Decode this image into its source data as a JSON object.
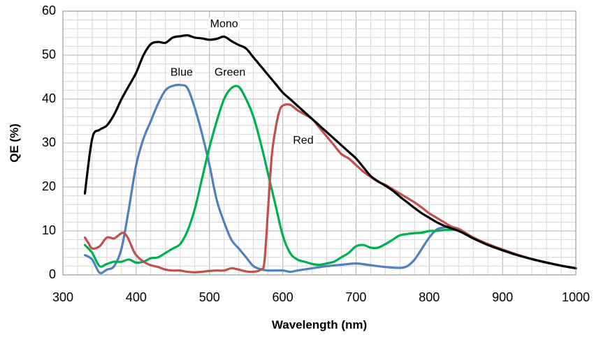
{
  "chart_data": {
    "type": "line",
    "xlabel": "Wavelength (nm)",
    "ylabel": "QE (%)",
    "xlim": [
      300,
      1000
    ],
    "ylim": [
      0,
      60
    ],
    "xticks": [
      300,
      400,
      500,
      600,
      700,
      800,
      900,
      1000
    ],
    "yticks": [
      0,
      10,
      20,
      30,
      40,
      50,
      60
    ],
    "grid": true,
    "legend": "none",
    "series": [
      {
        "name": "Mono",
        "color": "#000000",
        "label_at": [
          520,
          57
        ],
        "points": [
          [
            330,
            18.5
          ],
          [
            340,
            31
          ],
          [
            350,
            33
          ],
          [
            360,
            34
          ],
          [
            370,
            36.5
          ],
          [
            380,
            40
          ],
          [
            390,
            43
          ],
          [
            400,
            46
          ],
          [
            410,
            50
          ],
          [
            420,
            52.5
          ],
          [
            430,
            53
          ],
          [
            440,
            52.8
          ],
          [
            450,
            54
          ],
          [
            460,
            54.3
          ],
          [
            470,
            54.5
          ],
          [
            480,
            54
          ],
          [
            490,
            53.8
          ],
          [
            500,
            53.5
          ],
          [
            510,
            53.7
          ],
          [
            520,
            54.2
          ],
          [
            530,
            53.2
          ],
          [
            540,
            52.3
          ],
          [
            550,
            51.5
          ],
          [
            560,
            49.5
          ],
          [
            570,
            47.5
          ],
          [
            580,
            45.5
          ],
          [
            590,
            43.5
          ],
          [
            600,
            41.5
          ],
          [
            610,
            40
          ],
          [
            620,
            38.5
          ],
          [
            630,
            37
          ],
          [
            640,
            35.5
          ],
          [
            650,
            34
          ],
          [
            660,
            32.5
          ],
          [
            670,
            31
          ],
          [
            680,
            29.5
          ],
          [
            690,
            28
          ],
          [
            700,
            26.5
          ],
          [
            710,
            24.5
          ],
          [
            720,
            22.5
          ],
          [
            730,
            21.3
          ],
          [
            740,
            20.3
          ],
          [
            750,
            19.2
          ],
          [
            760,
            17.8
          ],
          [
            770,
            16.5
          ],
          [
            780,
            15.2
          ],
          [
            790,
            14
          ],
          [
            800,
            13
          ],
          [
            810,
            12
          ],
          [
            820,
            11.2
          ],
          [
            830,
            10.6
          ],
          [
            840,
            10
          ],
          [
            850,
            9.2
          ],
          [
            860,
            8.3
          ],
          [
            880,
            6.8
          ],
          [
            900,
            5.6
          ],
          [
            920,
            4.5
          ],
          [
            940,
            3.6
          ],
          [
            960,
            2.8
          ],
          [
            980,
            2.1
          ],
          [
            1000,
            1.5
          ]
        ]
      },
      {
        "name": "Blue",
        "color": "#4f81bd",
        "label_at": [
          462,
          46
        ],
        "points": [
          [
            330,
            4.5
          ],
          [
            340,
            3.5
          ],
          [
            350,
            0.5
          ],
          [
            360,
            1.2
          ],
          [
            370,
            2
          ],
          [
            380,
            6
          ],
          [
            390,
            15
          ],
          [
            400,
            25
          ],
          [
            410,
            31
          ],
          [
            420,
            35
          ],
          [
            430,
            39
          ],
          [
            440,
            42
          ],
          [
            450,
            43
          ],
          [
            460,
            43.2
          ],
          [
            470,
            42.5
          ],
          [
            480,
            38
          ],
          [
            490,
            32
          ],
          [
            500,
            25
          ],
          [
            510,
            17
          ],
          [
            520,
            12
          ],
          [
            530,
            8
          ],
          [
            540,
            6
          ],
          [
            550,
            4
          ],
          [
            560,
            2
          ],
          [
            570,
            1.3
          ],
          [
            580,
            1
          ],
          [
            600,
            1
          ],
          [
            610,
            0.7
          ],
          [
            620,
            1
          ],
          [
            640,
            1.5
          ],
          [
            660,
            2
          ],
          [
            680,
            2.3
          ],
          [
            700,
            2.6
          ],
          [
            720,
            2.2
          ],
          [
            740,
            1.8
          ],
          [
            760,
            1.6
          ],
          [
            770,
            2
          ],
          [
            780,
            3.5
          ],
          [
            790,
            6
          ],
          [
            800,
            8.5
          ],
          [
            810,
            10.3
          ],
          [
            820,
            10.8
          ],
          [
            830,
            10.8
          ],
          [
            840,
            10.2
          ],
          [
            860,
            8.5
          ],
          [
            880,
            7
          ],
          [
            900,
            5.7
          ],
          [
            920,
            4.6
          ],
          [
            940,
            3.6
          ],
          [
            960,
            2.8
          ],
          [
            980,
            2.1
          ],
          [
            1000,
            1.5
          ]
        ]
      },
      {
        "name": "Green",
        "color": "#00b050",
        "label_at": [
          528,
          46
        ],
        "points": [
          [
            330,
            6.8
          ],
          [
            340,
            5
          ],
          [
            350,
            2
          ],
          [
            360,
            2.5
          ],
          [
            370,
            3
          ],
          [
            380,
            3
          ],
          [
            390,
            3.5
          ],
          [
            400,
            2.8
          ],
          [
            410,
            3
          ],
          [
            420,
            3.8
          ],
          [
            430,
            4
          ],
          [
            440,
            5
          ],
          [
            450,
            6
          ],
          [
            460,
            7
          ],
          [
            470,
            10
          ],
          [
            480,
            15
          ],
          [
            490,
            22
          ],
          [
            500,
            29
          ],
          [
            510,
            35
          ],
          [
            520,
            40
          ],
          [
            530,
            42.5
          ],
          [
            540,
            42.8
          ],
          [
            550,
            40
          ],
          [
            560,
            36
          ],
          [
            570,
            30
          ],
          [
            580,
            23
          ],
          [
            590,
            16
          ],
          [
            600,
            9
          ],
          [
            610,
            5
          ],
          [
            620,
            3.5
          ],
          [
            630,
            3
          ],
          [
            640,
            2.5
          ],
          [
            650,
            2.3
          ],
          [
            660,
            2.6
          ],
          [
            670,
            3
          ],
          [
            680,
            4
          ],
          [
            690,
            5
          ],
          [
            700,
            6.5
          ],
          [
            710,
            6.8
          ],
          [
            720,
            6.2
          ],
          [
            730,
            6.2
          ],
          [
            740,
            7
          ],
          [
            750,
            8
          ],
          [
            760,
            9
          ],
          [
            770,
            9.3
          ],
          [
            780,
            9.5
          ],
          [
            790,
            9.6
          ],
          [
            800,
            10
          ],
          [
            810,
            10
          ],
          [
            820,
            10.2
          ],
          [
            830,
            10.3
          ],
          [
            840,
            10.2
          ],
          [
            850,
            9.3
          ],
          [
            860,
            8.5
          ],
          [
            880,
            7
          ],
          [
            900,
            5.7
          ],
          [
            920,
            4.6
          ],
          [
            940,
            3.6
          ],
          [
            960,
            2.8
          ],
          [
            980,
            2.1
          ],
          [
            1000,
            1.5
          ]
        ]
      },
      {
        "name": "Red",
        "color": "#c0504d",
        "label_at": [
          628,
          30.5
        ],
        "points": [
          [
            330,
            8.5
          ],
          [
            335,
            7.2
          ],
          [
            340,
            6
          ],
          [
            350,
            6.5
          ],
          [
            360,
            8.5
          ],
          [
            370,
            8.3
          ],
          [
            380,
            9.5
          ],
          [
            385,
            9.3
          ],
          [
            390,
            8
          ],
          [
            395,
            6
          ],
          [
            400,
            4.5
          ],
          [
            410,
            3
          ],
          [
            420,
            2.2
          ],
          [
            430,
            1.8
          ],
          [
            440,
            1.2
          ],
          [
            450,
            1
          ],
          [
            460,
            1
          ],
          [
            470,
            0.7
          ],
          [
            480,
            0.6
          ],
          [
            490,
            0.7
          ],
          [
            500,
            0.9
          ],
          [
            510,
            1
          ],
          [
            520,
            1
          ],
          [
            530,
            1.5
          ],
          [
            540,
            1.2
          ],
          [
            550,
            0.8
          ],
          [
            560,
            0.7
          ],
          [
            570,
            1.2
          ],
          [
            575,
            3
          ],
          [
            580,
            15
          ],
          [
            585,
            27
          ],
          [
            590,
            33
          ],
          [
            595,
            37
          ],
          [
            600,
            38.5
          ],
          [
            610,
            38.7
          ],
          [
            620,
            37.5
          ],
          [
            630,
            36.5
          ],
          [
            640,
            35.5
          ],
          [
            650,
            33.5
          ],
          [
            660,
            31.5
          ],
          [
            670,
            29.5
          ],
          [
            680,
            27.5
          ],
          [
            690,
            26.5
          ],
          [
            700,
            25
          ],
          [
            710,
            23.5
          ],
          [
            720,
            22.3
          ],
          [
            730,
            21.2
          ],
          [
            740,
            20.5
          ],
          [
            750,
            19.5
          ],
          [
            760,
            18.5
          ],
          [
            770,
            17.5
          ],
          [
            780,
            16.5
          ],
          [
            790,
            15.3
          ],
          [
            800,
            14
          ],
          [
            810,
            13
          ],
          [
            820,
            12
          ],
          [
            830,
            11
          ],
          [
            840,
            10.5
          ],
          [
            850,
            9.5
          ],
          [
            860,
            8.5
          ],
          [
            880,
            7
          ],
          [
            900,
            5.8
          ],
          [
            920,
            4.6
          ],
          [
            940,
            3.6
          ],
          [
            960,
            2.8
          ],
          [
            980,
            2.1
          ],
          [
            1000,
            1.5
          ]
        ]
      }
    ]
  }
}
